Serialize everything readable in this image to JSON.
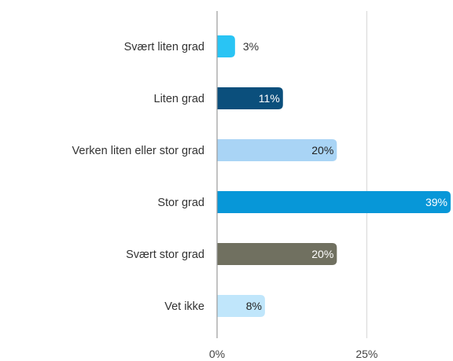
{
  "chart_data": {
    "type": "bar",
    "orientation": "horizontal",
    "categories": [
      "Svært liten grad",
      "Liten grad",
      "Verken liten eller stor grad",
      "Stor grad",
      "Svært stor grad",
      "Vet ikke"
    ],
    "values": [
      3,
      11,
      20,
      39,
      20,
      8
    ],
    "value_labels": [
      "3%",
      "11%",
      "20%",
      "39%",
      "20%",
      "8%"
    ],
    "colors": [
      "#29c4f4",
      "#0b4f7c",
      "#a9d4f5",
      "#0797d8",
      "#707060",
      "#c0e6fb"
    ],
    "label_colors": [
      "#333333",
      "#ffffff",
      "#222222",
      "#ffffff",
      "#ffffff",
      "#222222"
    ],
    "x_ticks": [
      0,
      25
    ],
    "x_tick_labels": [
      "0%",
      "25%"
    ],
    "xlim": [
      0,
      39
    ],
    "grid": true,
    "title": "",
    "xlabel": "",
    "ylabel": ""
  }
}
